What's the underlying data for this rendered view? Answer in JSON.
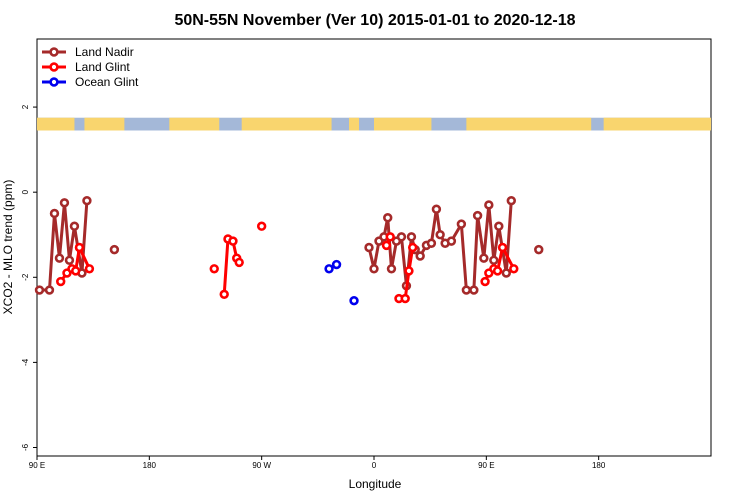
{
  "chart_data": {
    "type": "line",
    "title": "50N-55N November (Ver 10)   2015-01-01 to 2020-12-18",
    "xlabel": "Longitude",
    "ylabel": "XCO2 - MLO trend (ppm)",
    "xlim": [
      -90,
      180
    ],
    "ylim": [
      -6.2,
      3.6
    ],
    "x_ticks": [
      {
        "value": -90,
        "label": "90 E"
      },
      {
        "value": -45,
        "label": "180"
      },
      {
        "value": 0,
        "label": "90 W"
      },
      {
        "value": 45,
        "label": "0"
      },
      {
        "value": 90,
        "label": "90 E"
      },
      {
        "value": 135,
        "label": "180"
      }
    ],
    "y_ticks": [
      {
        "value": 2,
        "label": "2"
      },
      {
        "value": 0,
        "label": "0"
      },
      {
        "value": -2,
        "label": "-2"
      },
      {
        "value": -4,
        "label": "-4"
      },
      {
        "value": -6,
        "label": "-6"
      }
    ],
    "legend_position": "top-left",
    "map_strip": {
      "y_range": [
        1.45,
        1.75
      ],
      "land_color": "#f9d56e",
      "ocean_color": "#a4b8d8"
    },
    "series": [
      {
        "name": "Land Nadir",
        "color": "#a52a2a",
        "segments": [
          [
            [
              -89,
              -2.3
            ],
            [
              -85,
              -2.3
            ],
            [
              -83,
              -0.5
            ],
            [
              -81,
              -1.55
            ],
            [
              -79,
              -0.25
            ],
            [
              -77,
              -1.6
            ],
            [
              -75,
              -0.8
            ],
            [
              -72,
              -1.9
            ],
            [
              -70,
              -0.2
            ]
          ],
          [
            [
              -59,
              -1.35
            ]
          ],
          [
            [
              43,
              -1.3
            ],
            [
              45,
              -1.8
            ],
            [
              47,
              -1.15
            ],
            [
              49,
              -1.05
            ],
            [
              50.5,
              -0.6
            ],
            [
              52,
              -1.8
            ],
            [
              54,
              -1.15
            ],
            [
              56,
              -1.05
            ],
            [
              58,
              -2.2
            ],
            [
              60,
              -1.05
            ],
            [
              61.5,
              -1.35
            ],
            [
              63.5,
              -1.5
            ],
            [
              66,
              -1.25
            ],
            [
              68,
              -1.2
            ],
            [
              70,
              -0.4
            ],
            [
              71.5,
              -1.0
            ],
            [
              73.5,
              -1.2
            ],
            [
              76,
              -1.15
            ],
            [
              80,
              -0.75
            ],
            [
              82,
              -2.3
            ],
            [
              85,
              -2.3
            ],
            [
              86.5,
              -0.55
            ],
            [
              89,
              -1.55
            ],
            [
              91,
              -0.3
            ],
            [
              93,
              -1.6
            ],
            [
              95,
              -0.8
            ],
            [
              98,
              -1.9
            ],
            [
              100,
              -0.2
            ]
          ],
          [
            [
              111,
              -1.35
            ]
          ]
        ]
      },
      {
        "name": "Land Glint",
        "color": "#ff0000",
        "segments": [
          [
            [
              -80.5,
              -2.1
            ],
            [
              -78,
              -1.9
            ],
            [
              -76,
              -1.8
            ],
            [
              -74.5,
              -1.85
            ],
            [
              -73,
              -1.3
            ],
            [
              -69,
              -1.8
            ]
          ],
          [
            [
              -19,
              -1.8
            ]
          ],
          [
            [
              -15,
              -2.4
            ],
            [
              -13.5,
              -1.1
            ],
            [
              -11.5,
              -1.15
            ],
            [
              -10,
              -1.55
            ],
            [
              -9,
              -1.65
            ]
          ],
          [
            [
              0,
              -0.8
            ]
          ],
          [
            [
              50,
              -1.25
            ],
            [
              51.5,
              -1.05
            ]
          ],
          [
            [
              55,
              -2.5
            ],
            [
              57.5,
              -2.5
            ],
            [
              59,
              -1.85
            ],
            [
              60.5,
              -1.3
            ]
          ],
          [
            [
              89.5,
              -2.1
            ],
            [
              91,
              -1.9
            ],
            [
              93,
              -1.8
            ],
            [
              94.5,
              -1.85
            ],
            [
              96.5,
              -1.3
            ],
            [
              101,
              -1.8
            ]
          ]
        ]
      },
      {
        "name": "Ocean Glint",
        "color": "#0000ee",
        "segments": [
          [
            [
              27,
              -1.8
            ],
            [
              30,
              -1.7
            ]
          ],
          [
            [
              37,
              -2.55
            ]
          ]
        ]
      }
    ]
  }
}
